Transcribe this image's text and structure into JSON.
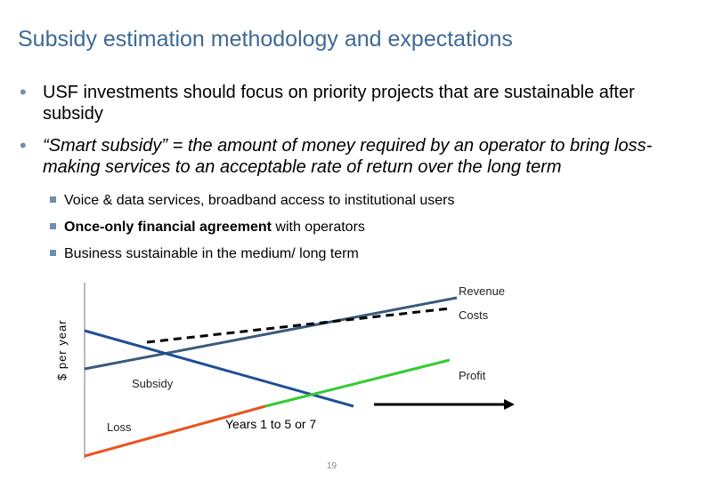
{
  "slide": {
    "title": "Subsidy estimation methodology and expectations",
    "page_number": "19"
  },
  "bullets": [
    {
      "text": "USF investments should focus on priority projects that are sustainable after subsidy"
    },
    {
      "text": "“Smart subsidy” = the amount of money required by an operator to bring loss-making services to an acceptable rate of return over the long term"
    }
  ],
  "sub_bullets": [
    {
      "text": "Voice & data services, broadband access to institutional users"
    },
    {
      "bold": "Once-only financial agreement",
      "rest": " with operators"
    },
    {
      "text": "Business sustainable in the medium/ long term"
    }
  ],
  "diagram": {
    "y_axis_label": "$ per year",
    "revenue_label": "Revenue",
    "costs_label": "Costs",
    "profit_label": "Profit",
    "subsidy_label": "Subsidy",
    "loss_label": "Loss",
    "years_label": "Years 1 to 5 or 7",
    "colors": {
      "revenue": "#3a5a7c",
      "costs": "#000000",
      "subsidy": "#1f4e96",
      "profit": "#33cc33",
      "loss": "#e8541e",
      "axis": "#777777",
      "title": "#3f6a93",
      "bullet": "#6f8db0"
    }
  }
}
